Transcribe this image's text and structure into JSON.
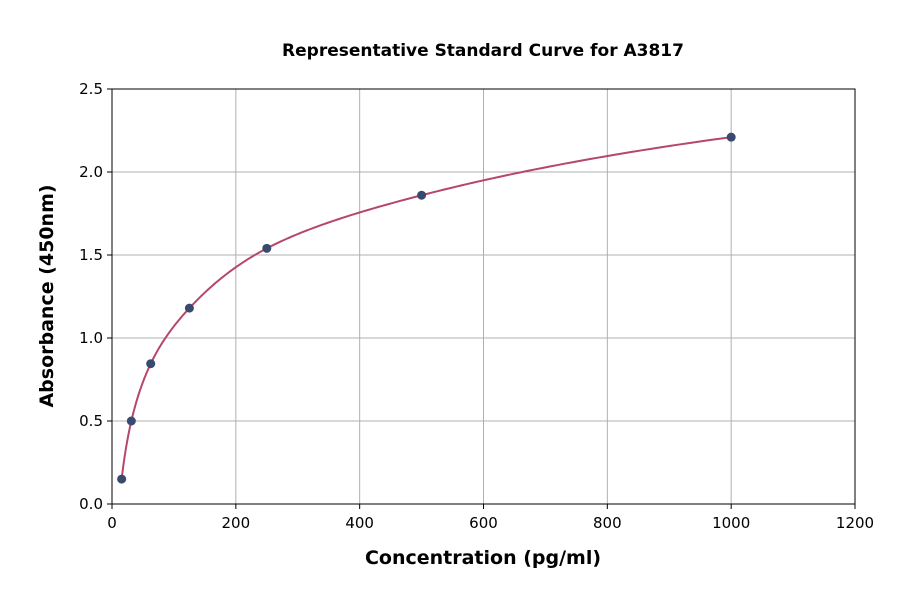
{
  "chart_data": {
    "type": "scatter",
    "title": "Representative Standard Curve for A3817",
    "xlabel": "Concentration (pg/ml)",
    "ylabel": "Absorbance (450nm)",
    "xlim": [
      0,
      1200
    ],
    "ylim": [
      0,
      2.5
    ],
    "xticks": [
      0,
      200,
      400,
      600,
      800,
      1000,
      1200
    ],
    "yticks": [
      0.0,
      0.5,
      1.0,
      1.5,
      2.0,
      2.5
    ],
    "xtick_labels": [
      "0",
      "200",
      "400",
      "600",
      "800",
      "1000",
      "1200"
    ],
    "ytick_labels": [
      "0.0",
      "0.5",
      "1.0",
      "1.5",
      "2.0",
      "2.5"
    ],
    "grid": true,
    "points": {
      "x": [
        15.6,
        31.25,
        62.5,
        125,
        250,
        500,
        1000
      ],
      "y": [
        0.15,
        0.5,
        0.845,
        1.18,
        1.54,
        1.86,
        2.21
      ]
    },
    "fit_curve": true,
    "colors": {
      "points": "#3a4a6e",
      "curve": "#b5476b",
      "grid": "#b0b0b0"
    }
  }
}
